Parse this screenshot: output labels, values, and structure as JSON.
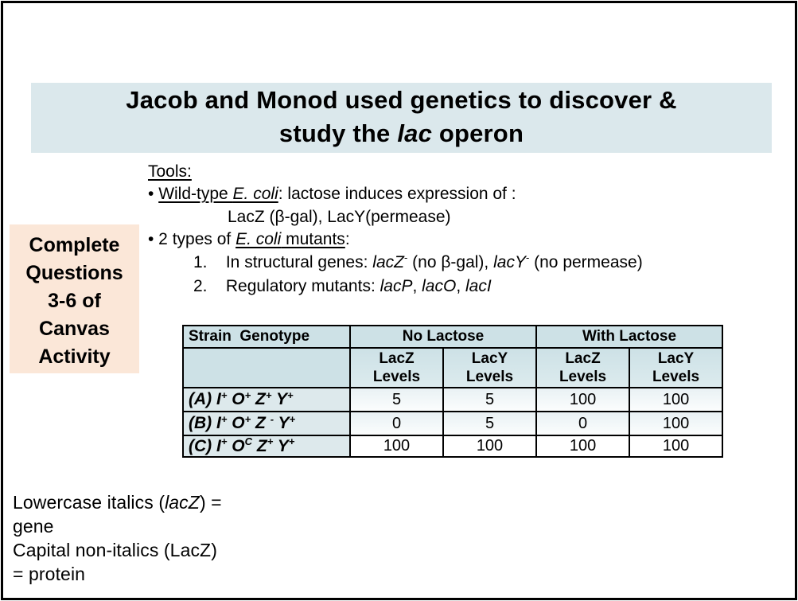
{
  "colors": {
    "title-band-bg": "#dbe8ec",
    "note-box-bg": "#fbe7d8",
    "table-header-bg": "#cde1e6",
    "table-label-bg": "#dde9ec",
    "table-tint-bg": "#e9f1f4",
    "border": "#000000"
  },
  "title": {
    "lines": [
      [
        {
          "t": "Jacob and Monod used genetics to discover &"
        }
      ],
      [
        {
          "t": "study the "
        },
        {
          "t": "lac",
          "s": "i"
        },
        {
          "t": " operon"
        }
      ]
    ]
  },
  "tools": {
    "lines": [
      [
        {
          "t": "Tools:",
          "s": "u"
        }
      ],
      [
        {
          "t": "• "
        },
        {
          "t": "Wild-type ",
          "s": "u"
        },
        {
          "t": "E. coli",
          "s": "iu"
        },
        {
          "t": ": lactose induces expression of :"
        }
      ],
      [
        {
          "t": "LacZ (β-gal), LacY(permease)"
        }
      ],
      [
        {
          "t": "• 2 types of "
        },
        {
          "t": "E. coli",
          "s": "iu"
        },
        {
          "t": " mutants",
          "s": "u"
        },
        {
          "t": ":"
        }
      ],
      [
        {
          "t": "1.    In structural genes: "
        },
        {
          "t": "lacZ",
          "s": "i"
        },
        {
          "t": "-",
          "s": "s"
        },
        {
          "t": " (no β-gal), "
        },
        {
          "t": "lacY",
          "s": "i"
        },
        {
          "t": "-",
          "s": "s"
        },
        {
          "t": " (no permease)"
        }
      ],
      [
        {
          "t": "2.    Regulatory mutants: "
        },
        {
          "t": "lacP",
          "s": "i"
        },
        {
          "t": ", "
        },
        {
          "t": "lacO",
          "s": "i"
        },
        {
          "t": ", "
        },
        {
          "t": "lacI",
          "s": "i"
        }
      ]
    ]
  },
  "note_box": {
    "lines": [
      "Complete",
      "Questions",
      "3-6 of",
      "Canvas",
      "Activity"
    ]
  },
  "table": {
    "headers": {
      "strain": "Strain  Genotype",
      "groups": [
        "No Lactose",
        "With Lactose"
      ],
      "columns": [
        "LacZ\nLevels",
        "LacY\nLevels",
        "LacZ\nLevels",
        "LacY\nLevels"
      ]
    },
    "rows": [
      {
        "label": [
          {
            "t": "(A) I"
          },
          {
            "t": "+",
            "s": "s"
          },
          {
            "t": " O"
          },
          {
            "t": "+",
            "s": "s"
          },
          {
            "t": " Z"
          },
          {
            "t": "+",
            "s": "s"
          },
          {
            "t": " Y"
          },
          {
            "t": "+",
            "s": "s"
          }
        ],
        "values": [
          "5",
          "5",
          "100",
          "100"
        ]
      },
      {
        "label": [
          {
            "t": "(B) I"
          },
          {
            "t": "+",
            "s": "s"
          },
          {
            "t": " O"
          },
          {
            "t": "+",
            "s": "s"
          },
          {
            "t": " Z "
          },
          {
            "t": "-",
            "s": "s"
          },
          {
            "t": " Y"
          },
          {
            "t": "+",
            "s": "s"
          }
        ],
        "values": [
          "0",
          "5",
          "0",
          "100"
        ]
      },
      {
        "label": [
          {
            "t": "(C) I"
          },
          {
            "t": "+",
            "s": "s"
          },
          {
            "t": " O"
          },
          {
            "t": "C",
            "s": "s"
          },
          {
            "t": " Z"
          },
          {
            "t": "+",
            "s": "s"
          },
          {
            "t": " Y"
          },
          {
            "t": "+",
            "s": "s"
          }
        ],
        "values": [
          "100",
          "100",
          "100",
          "100"
        ]
      }
    ]
  },
  "footnote": {
    "lines": [
      [
        {
          "t": "Lowercase italics ("
        },
        {
          "t": "lacZ",
          "s": "i"
        },
        {
          "t": ") ="
        }
      ],
      [
        {
          "t": "gene"
        }
      ],
      [
        {
          "t": "Capital non-italics (LacZ)"
        }
      ],
      [
        {
          "t": "= protein"
        }
      ]
    ]
  }
}
